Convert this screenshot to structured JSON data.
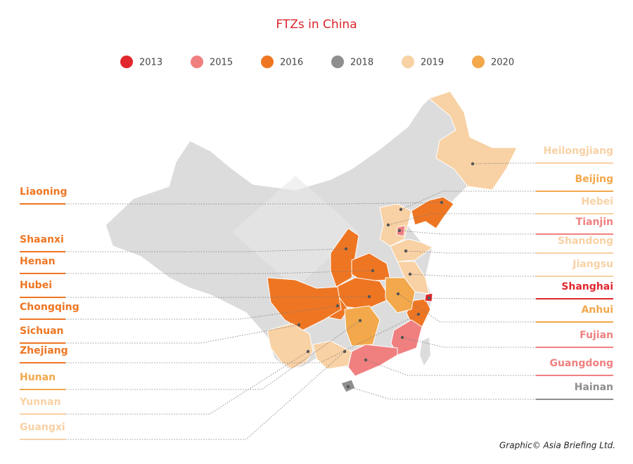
{
  "title": "FTZs in China",
  "legend": [
    {
      "label": "2013",
      "color": "#e0282e"
    },
    {
      "label": "2015",
      "color": "#f08080"
    },
    {
      "label": "2016",
      "color": "#ee7623"
    },
    {
      "label": "2018",
      "color": "#8e8e8e"
    },
    {
      "label": "2019",
      "color": "#f8d1a4"
    },
    {
      "label": "2020",
      "color": "#f2a84b"
    }
  ],
  "left_labels": [
    {
      "name": "Liaoning",
      "color": "#ee7623"
    },
    {
      "name": "Shaanxi",
      "color": "#ee7623"
    },
    {
      "name": "Henan",
      "color": "#ee7623"
    },
    {
      "name": "Hubei",
      "color": "#ee7623"
    },
    {
      "name": "Chongqing",
      "color": "#ee7623"
    },
    {
      "name": "Sichuan",
      "color": "#ee7623"
    },
    {
      "name": "Zhejiang",
      "color": "#ee7623"
    },
    {
      "name": "Hunan",
      "color": "#f2a84b"
    },
    {
      "name": "Yunnan",
      "color": "#f8d1a4"
    },
    {
      "name": "Guangxi",
      "color": "#f8d1a4"
    }
  ],
  "right_labels": [
    {
      "name": "Heilongjiang",
      "color": "#f8d1a4"
    },
    {
      "name": "Beijing",
      "color": "#f2a84b"
    },
    {
      "name": "Hebei",
      "color": "#f8d1a4"
    },
    {
      "name": "Tianjin",
      "color": "#f08080"
    },
    {
      "name": "Shandong",
      "color": "#f8d1a4"
    },
    {
      "name": "Jiangsu",
      "color": "#f8d1a4"
    },
    {
      "name": "Shanghai",
      "color": "#e0282e"
    },
    {
      "name": "Anhui",
      "color": "#f2a84b"
    },
    {
      "name": "Fujian",
      "color": "#f08080"
    },
    {
      "name": "Guangdong",
      "color": "#f08080"
    },
    {
      "name": "Hainan",
      "color": "#8e8e8e"
    }
  ],
  "credit": "Graphic© Asia Briefing Ltd."
}
